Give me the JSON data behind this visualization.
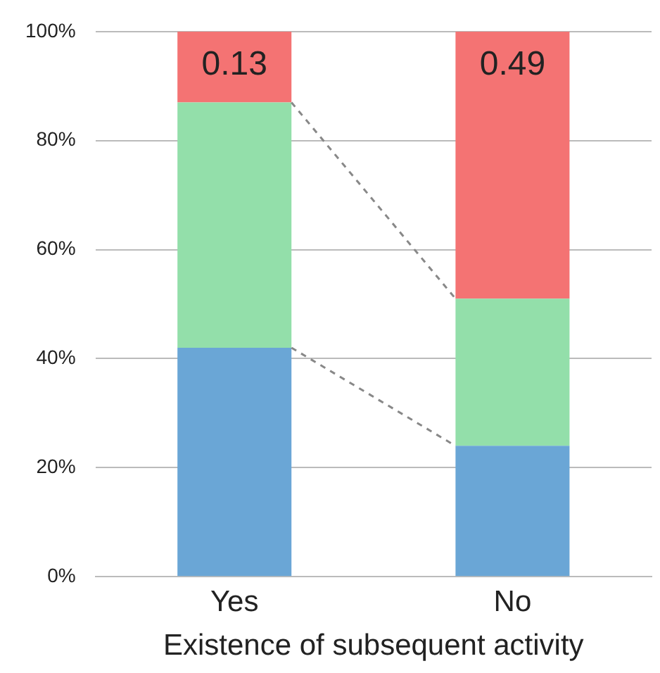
{
  "chart_data": {
    "type": "bar",
    "stacked": true,
    "xlabel": "Existence of subsequent activity",
    "categories": [
      "Yes",
      "No"
    ],
    "series": [
      {
        "color": "#6aa6d6",
        "values": [
          0.42,
          0.24
        ]
      },
      {
        "color": "#93dfaa",
        "values": [
          0.45,
          0.27
        ]
      },
      {
        "color": "#f47373",
        "values": [
          0.13,
          0.49
        ],
        "value_labels": [
          "0.13",
          "0.49"
        ]
      }
    ],
    "ylim": [
      0,
      1
    ],
    "yticks": [
      {
        "value": 0,
        "label": "0%"
      },
      {
        "value": 0.2,
        "label": "20%"
      },
      {
        "value": 0.4,
        "label": "40%"
      },
      {
        "value": 0.6,
        "label": "60%"
      },
      {
        "value": 0.8,
        "label": "80%"
      },
      {
        "value": 1,
        "label": "100%"
      }
    ],
    "grid": "y",
    "legend": false
  }
}
